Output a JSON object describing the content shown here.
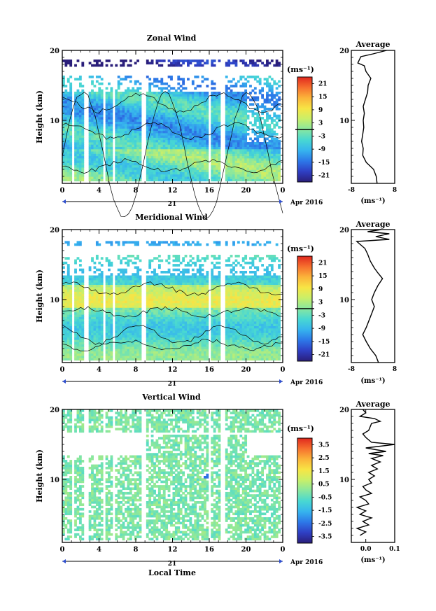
{
  "chart_data": [
    {
      "type": "heatmap",
      "title": "Zonal Wind",
      "ylabel": "Height (km)",
      "xlabel": "",
      "x_ticks": [
        "0",
        "4",
        "8",
        "12",
        "16",
        "20",
        "0"
      ],
      "y_ticks": [
        "20",
        "10"
      ],
      "xlim": [
        0,
        24
      ],
      "ylim": [
        1,
        20
      ],
      "date_day": "21",
      "date_label": "Apr 2016",
      "colorbar": {
        "unit": "(ms⁻¹)",
        "ticks": [
          "21",
          "15",
          "9",
          "3",
          "-3",
          "-9",
          "-15",
          "-21"
        ],
        "range": [
          -24,
          24
        ]
      },
      "profile": {
        "title": "Average",
        "xlabel": "(ms⁻¹)",
        "x_ticks": [
          "-8",
          "8"
        ],
        "xlim": [
          -8,
          8
        ],
        "y_ticks": [
          "20",
          "10"
        ],
        "points": [
          [
            1.5,
            1
          ],
          [
            1.2,
            2
          ],
          [
            0.2,
            3
          ],
          [
            -2.5,
            4
          ],
          [
            -3.8,
            5
          ],
          [
            -3.6,
            6
          ],
          [
            -4.2,
            7
          ],
          [
            -3.8,
            8
          ],
          [
            -3.4,
            9
          ],
          [
            -3.6,
            10
          ],
          [
            -3.2,
            11
          ],
          [
            -3.6,
            12
          ],
          [
            -2.8,
            13
          ],
          [
            -2.0,
            14
          ],
          [
            -1.8,
            15
          ],
          [
            -0.8,
            16
          ],
          [
            -2.6,
            17
          ],
          [
            -3.2,
            17.8
          ],
          [
            -5.6,
            18.2
          ],
          [
            -4.5,
            19.1
          ],
          [
            0,
            19.5
          ],
          [
            3,
            19.8
          ],
          [
            5,
            20
          ]
        ]
      }
    },
    {
      "type": "heatmap",
      "title": "Meridional Wind",
      "ylabel": "Height (km)",
      "xlabel": "",
      "x_ticks": [
        "0",
        "4",
        "8",
        "12",
        "16",
        "20",
        "0"
      ],
      "y_ticks": [
        "20",
        "10"
      ],
      "xlim": [
        0,
        24
      ],
      "ylim": [
        1,
        20
      ],
      "date_day": "21",
      "date_label": "Apr 2016",
      "colorbar": {
        "unit": "(ms⁻¹)",
        "ticks": [
          "21",
          "15",
          "9",
          "3",
          "-3",
          "-9",
          "-15",
          "-21"
        ],
        "range": [
          -24,
          24
        ]
      },
      "profile": {
        "title": "Average",
        "xlabel": "(ms⁻¹)",
        "x_ticks": [
          "-8",
          "8"
        ],
        "xlim": [
          -8,
          8
        ],
        "y_ticks": [
          "20",
          "10"
        ],
        "points": [
          [
            2,
            1
          ],
          [
            1,
            2
          ],
          [
            -1,
            3
          ],
          [
            -2.5,
            4
          ],
          [
            -3.8,
            5
          ],
          [
            -2.5,
            6
          ],
          [
            -1.5,
            7
          ],
          [
            -0.5,
            8
          ],
          [
            0.5,
            9
          ],
          [
            -0.5,
            10
          ],
          [
            0.5,
            11
          ],
          [
            1.8,
            12
          ],
          [
            3.5,
            13
          ],
          [
            1.8,
            13.8
          ],
          [
            0.5,
            14.5
          ],
          [
            -1,
            15.5
          ],
          [
            -2,
            16.5
          ],
          [
            -3,
            17.3
          ],
          [
            -4.5,
            17.8
          ],
          [
            -6,
            18.3
          ],
          [
            6,
            18.6
          ],
          [
            1,
            19
          ],
          [
            6,
            19.4
          ],
          [
            -2,
            19.7
          ],
          [
            3,
            20
          ]
        ]
      }
    },
    {
      "type": "heatmap",
      "title": "Vertical Wind",
      "ylabel": "Height (km)",
      "xlabel": "Local Time",
      "x_ticks": [
        "0",
        "4",
        "8",
        "12",
        "16",
        "20",
        "0"
      ],
      "y_ticks": [
        "20",
        "10"
      ],
      "xlim": [
        0,
        24
      ],
      "ylim": [
        1,
        20
      ],
      "date_day": "21",
      "date_label": "Apr 2016",
      "colorbar": {
        "unit": "(ms⁻¹)",
        "ticks": [
          "3.5",
          "2.5",
          "1.5",
          "0.5",
          "-0.5",
          "-1.5",
          "-2.5",
          "-3.5"
        ],
        "range": [
          -4,
          4
        ]
      },
      "profile": {
        "title": "Average",
        "xlabel": "(ms⁻¹)",
        "x_ticks": [
          "0.0",
          "0.1"
        ],
        "xlim": [
          -0.05,
          0.1
        ],
        "y_ticks": [
          "20",
          "10"
        ],
        "points": [
          [
            -0.02,
            2
          ],
          [
            0.0,
            2.5
          ],
          [
            -0.03,
            3
          ],
          [
            0.01,
            3.5
          ],
          [
            -0.01,
            4
          ],
          [
            0.02,
            4.5
          ],
          [
            -0.02,
            5
          ],
          [
            0.0,
            5.5
          ],
          [
            -0.03,
            6
          ],
          [
            0.01,
            6.5
          ],
          [
            0.0,
            7
          ],
          [
            -0.02,
            7.5
          ],
          [
            0.02,
            8
          ],
          [
            0.0,
            8.5
          ],
          [
            -0.01,
            9
          ],
          [
            0.02,
            9.5
          ],
          [
            0.01,
            10
          ],
          [
            0.03,
            10.5
          ],
          [
            0.01,
            11
          ],
          [
            0.04,
            11.5
          ],
          [
            0.02,
            12
          ],
          [
            0.05,
            12.5
          ],
          [
            0.02,
            13
          ],
          [
            0.06,
            13.4
          ],
          [
            0.01,
            13.7
          ],
          [
            0.07,
            14
          ],
          [
            0.0,
            14.5
          ],
          [
            0.1,
            15
          ],
          [
            0.02,
            15.3
          ],
          [
            0.0,
            16
          ],
          [
            -0.01,
            16.5
          ],
          [
            0.01,
            17
          ],
          [
            0.02,
            18
          ],
          [
            0.05,
            18.3
          ],
          [
            0.03,
            18.7
          ],
          [
            -0.02,
            19
          ],
          [
            0.0,
            19.5
          ],
          [
            -0.01,
            20
          ]
        ]
      }
    }
  ]
}
